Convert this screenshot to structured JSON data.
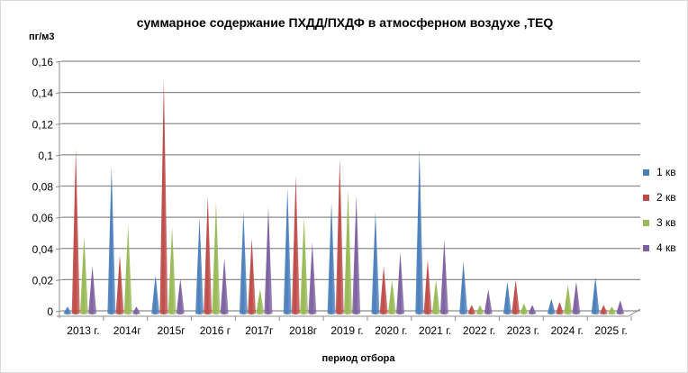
{
  "chart_data": {
    "type": "bar",
    "title": "суммарное содержание ПХДД/ПХДФ в атмосферном воздухе ,TEQ",
    "ylabel": "пг/м3",
    "xlabel": "период отбора",
    "ylim": [
      0,
      0.16
    ],
    "yticks": [
      "0",
      "0,02",
      "0,04",
      "0,06",
      "0,08",
      "0,1",
      "0,12",
      "0,14",
      "0,16"
    ],
    "categories": [
      "2013 г.",
      "2014г",
      "2015г",
      "2016 г",
      "2017г",
      "2018г",
      "2019 г.",
      "2020 г.",
      "2021 г.",
      "2022 г.",
      "2023 г.",
      "2024 г.",
      "2025 г."
    ],
    "legend_position": "right",
    "series": [
      {
        "name": "1 кв",
        "color": "#4a7ebb",
        "values": [
          0.001,
          0.091,
          0.021,
          0.058,
          0.062,
          0.077,
          0.068,
          0.062,
          0.102,
          0.03,
          0.017,
          0.006,
          0.02
        ]
      },
      {
        "name": "2 кв",
        "color": "#be4b48",
        "values": [
          0.102,
          0.034,
          0.147,
          0.072,
          0.045,
          0.085,
          0.096,
          0.027,
          0.031,
          0.002,
          0.018,
          0.004,
          0.002
        ]
      },
      {
        "name": "3 кв",
        "color": "#98b954",
        "values": [
          0.046,
          0.053,
          0.052,
          0.068,
          0.012,
          0.058,
          0.076,
          0.018,
          0.018,
          0.002,
          0.003,
          0.015,
          0.001
        ]
      },
      {
        "name": "4 кв",
        "color": "#7d60a0",
        "values": [
          0.027,
          0.001,
          0.019,
          0.032,
          0.065,
          0.042,
          0.072,
          0.036,
          0.044,
          0.012,
          0.002,
          0.017,
          0.005
        ]
      }
    ]
  }
}
